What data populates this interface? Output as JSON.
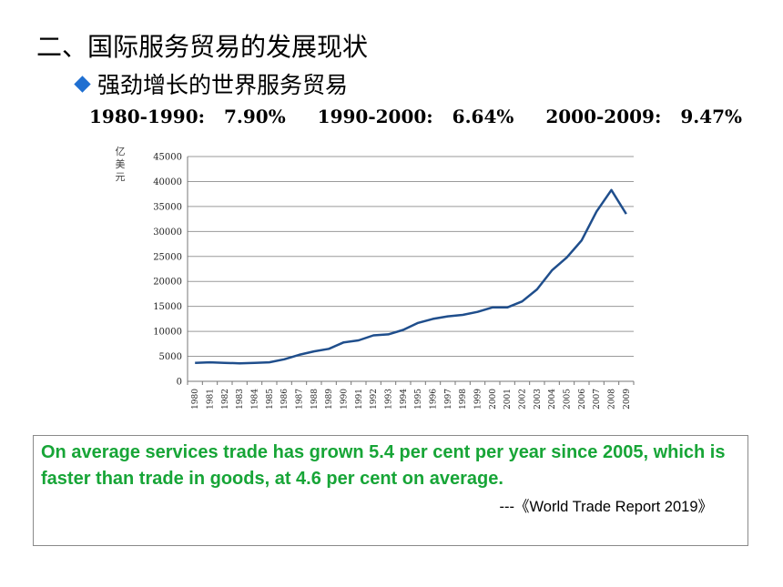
{
  "heading": "二、国际服务贸易的发展现状",
  "subheading": "强劲增长的世界服务贸易",
  "rates": [
    {
      "period": "1980-1990:",
      "value": "7.90%"
    },
    {
      "period": "1990-2000:",
      "value": "6.64%"
    },
    {
      "period": "2000-2009:",
      "value": "9.47%"
    }
  ],
  "chart_data": {
    "type": "line",
    "ylabel": "亿美元",
    "ylim": [
      0,
      45000
    ],
    "yticks": [
      0,
      5000,
      10000,
      15000,
      20000,
      25000,
      30000,
      35000,
      40000,
      45000
    ],
    "grid": true,
    "line_color": "#1f4e8c",
    "x": [
      "1980",
      "1981",
      "1982",
      "1983",
      "1984",
      "1985",
      "1986",
      "1987",
      "1988",
      "1989",
      "1990",
      "1991",
      "1992",
      "1993",
      "1994",
      "1995",
      "1996",
      "1997",
      "1998",
      "1999",
      "2000",
      "2001",
      "2002",
      "2003",
      "2004",
      "2005",
      "2006",
      "2007",
      "2008",
      "2009"
    ],
    "series": [
      {
        "values": [
          3700,
          3800,
          3700,
          3600,
          3700,
          3800,
          4400,
          5300,
          6000,
          6500,
          7800,
          8200,
          9200,
          9400,
          10300,
          11700,
          12500,
          13000,
          13300,
          13900,
          14800,
          14800,
          16000,
          18400,
          22200,
          24800,
          28200,
          34000,
          38300,
          33500
        ]
      }
    ]
  },
  "quote": {
    "text": "On average services trade has grown 5.4 per cent per year since 2005, which is faster than trade in goods, at 4.6 per cent on average.",
    "source": "---《World Trade Report 2019》"
  }
}
